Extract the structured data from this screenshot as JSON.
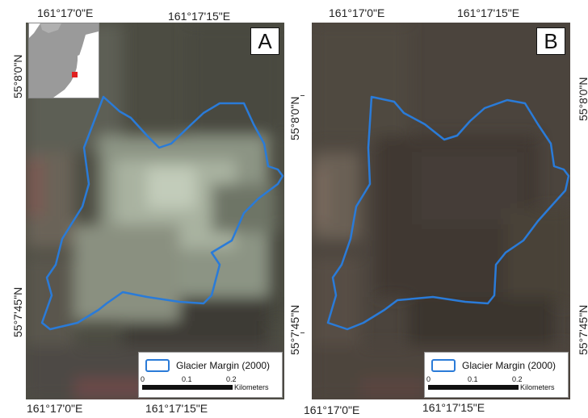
{
  "panel_a": {
    "letter": "A",
    "top_left_lon": "161°17'0\"E",
    "top_right_lon": "161°17'15\"E",
    "bottom_left_lon": "161°17'0\"E",
    "bottom_right_lon": "161°17'15\"E",
    "lat_top": "55°8'0\"N",
    "lat_bottom": "55°7'45\"N",
    "legend": {
      "label": "Glacier Margin (2000)",
      "scale_ticks": [
        "0",
        "0.1",
        "0.2"
      ],
      "unit": "Kilometers"
    }
  },
  "panel_b": {
    "letter": "B",
    "top_left_lon": "161°17'0\"E",
    "top_right_lon": "161°17'15\"E",
    "bottom_left_lon": "161°17'0\"E",
    "bottom_right_lon": "161°17'15\"E",
    "lat_top": "55°8'0\"N",
    "lat_bottom": "55°7'45\"N",
    "legend": {
      "label": "Glacier Margin (2000)",
      "scale_ticks": [
        "0",
        "0.1",
        "0.2"
      ],
      "unit": "Kilometers"
    }
  },
  "colors": {
    "glacier_outline": "#2a7bd8",
    "inset_marker": "#e02020",
    "inset_land": "#9a9a9a"
  }
}
